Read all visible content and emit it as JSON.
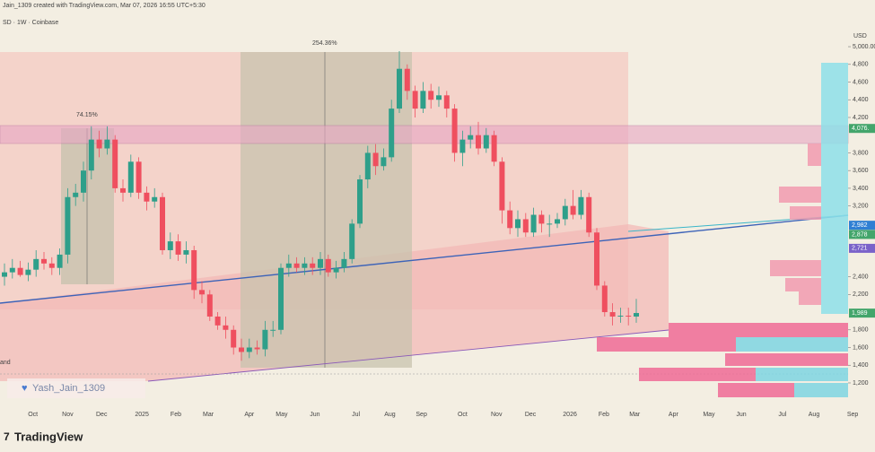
{
  "header": {
    "credit": "Jain_1309 created with TradingView.com, Mar 07, 2026 16:55 UTC+5:30",
    "symbol": "SD · 1W · Coinbase"
  },
  "footer": {
    "brand": "TradingView"
  },
  "watermark": "Yash_Jain_1309",
  "chart_data": {
    "type": "candlestick",
    "currency": "USD",
    "annotations": [
      {
        "text": "74.15%"
      },
      {
        "text": "254.36%"
      },
      {
        "text": "and"
      }
    ],
    "up_color": "#2e9f8a",
    "down_color": "#ef4f5f",
    "ylim": [
      916,
      5345
    ],
    "yticks": [
      {
        "value": 1200,
        "label": "1,200"
      },
      {
        "value": 1400,
        "label": "1,400"
      },
      {
        "value": 1600,
        "label": "1,600"
      },
      {
        "value": 1800,
        "label": "1,800"
      },
      {
        "value": 2200,
        "label": "2,200"
      },
      {
        "value": 2400,
        "label": "2,400"
      },
      {
        "value": 3200,
        "label": "3,200"
      },
      {
        "value": 3400,
        "label": "3,400"
      },
      {
        "value": 3600,
        "label": "3,600"
      },
      {
        "value": 3800,
        "label": "3,800"
      },
      {
        "value": 4200,
        "label": "4,200"
      },
      {
        "value": 4400,
        "label": "4,400"
      },
      {
        "value": 4600,
        "label": "4,600"
      },
      {
        "value": 4800,
        "label": "4,800"
      },
      {
        "value": 5000,
        "label": "5,000.00"
      }
    ],
    "price_labels": [
      {
        "value": 4076,
        "label": "4,076.",
        "color": "#43a56b"
      },
      {
        "value": 2982,
        "label": "2,982",
        "color": "#2f7fd3"
      },
      {
        "value": 2878,
        "label": "2,878",
        "color": "#43a56b"
      },
      {
        "value": 2721,
        "label": "2,721",
        "color": "#7a62c9"
      },
      {
        "value": 1989,
        "label": "1,989",
        "color": "#43a56b"
      }
    ],
    "xticks": [
      {
        "value": 3.6,
        "label": "Oct"
      },
      {
        "value": 8.0,
        "label": "Nov"
      },
      {
        "value": 12.3,
        "label": "Dec"
      },
      {
        "value": 17.4,
        "label": "2025"
      },
      {
        "value": 21.7,
        "label": "Feb"
      },
      {
        "value": 25.8,
        "label": "Mar"
      },
      {
        "value": 31.0,
        "label": "Apr"
      },
      {
        "value": 35.1,
        "label": "May"
      },
      {
        "value": 39.3,
        "label": "Jun"
      },
      {
        "value": 44.5,
        "label": "Jul"
      },
      {
        "value": 48.8,
        "label": "Aug"
      },
      {
        "value": 52.8,
        "label": "Sep"
      },
      {
        "value": 58.0,
        "label": "Oct"
      },
      {
        "value": 62.3,
        "label": "Nov"
      },
      {
        "value": 66.6,
        "label": "Dec"
      },
      {
        "value": 71.6,
        "label": "2026"
      },
      {
        "value": 75.9,
        "label": "Feb"
      },
      {
        "value": 79.8,
        "label": "Mar"
      },
      {
        "value": 84.7,
        "label": "Apr"
      },
      {
        "value": 89.2,
        "label": "May"
      },
      {
        "value": 93.3,
        "label": "Jun"
      },
      {
        "value": 98.5,
        "label": "Jul"
      },
      {
        "value": 102.5,
        "label": "Aug"
      },
      {
        "value": 107.4,
        "label": "Sep"
      }
    ],
    "open": [
      2400,
      2450,
      2500,
      2420,
      2480,
      2600,
      2550,
      2500,
      2650,
      3300,
      3350,
      3600,
      3950,
      3850,
      3950,
      3400,
      3350,
      3700,
      3350,
      3250,
      3300,
      2700,
      2800,
      2650,
      2700,
      2250,
      2200,
      1950,
      1850,
      1800,
      1600,
      1550,
      1600,
      1580,
      1800,
      1800,
      2500,
      2550,
      2500,
      2550,
      2500,
      2600,
      2450,
      2500,
      2600,
      3000,
      3500,
      3800,
      3650,
      3750,
      4300,
      4750,
      4500,
      4300,
      4500,
      4400,
      4450,
      4300,
      3800,
      3950,
      4000,
      3850,
      4000,
      3700,
      3150,
      2950,
      3050,
      2900,
      3100,
      3000,
      3000,
      3050,
      3200,
      3100,
      3300,
      2900,
      2300,
      2000,
      1950,
      1960,
      1950
    ],
    "high": [
      2550,
      2600,
      2580,
      2560,
      2700,
      2680,
      2620,
      2720,
      3400,
      3450,
      3700,
      4100,
      4050,
      4100,
      4000,
      3500,
      3780,
      3750,
      3420,
      3400,
      3350,
      2900,
      2880,
      2800,
      2750,
      2350,
      2250,
      2000,
      1950,
      1850,
      1700,
      1700,
      1680,
      1900,
      1900,
      2550,
      2650,
      2620,
      2620,
      2620,
      2680,
      2650,
      2580,
      2680,
      3050,
      3550,
      3880,
      3900,
      3850,
      4400,
      4950,
      4800,
      4560,
      4600,
      4580,
      4550,
      4500,
      4350,
      4050,
      4100,
      4150,
      4080,
      4050,
      3750,
      3250,
      3150,
      3120,
      3180,
      3150,
      3100,
      3120,
      3280,
      3380,
      3380,
      3350,
      2950,
      2350,
      2100,
      2050,
      2050,
      2150
    ],
    "low": [
      2300,
      2380,
      2400,
      2350,
      2400,
      2480,
      2420,
      2420,
      2550,
      3200,
      3250,
      3500,
      3750,
      3780,
      3350,
      3250,
      3300,
      3280,
      3150,
      3180,
      2650,
      2600,
      2580,
      2550,
      2150,
      2100,
      1900,
      1800,
      1700,
      1520,
      1450,
      1480,
      1520,
      1500,
      1720,
      1750,
      2400,
      2450,
      2420,
      2420,
      2420,
      2400,
      2380,
      2450,
      2550,
      2950,
      3400,
      3550,
      3600,
      3700,
      4250,
      4400,
      4200,
      4250,
      4300,
      4320,
      4200,
      3700,
      3650,
      3850,
      3780,
      3800,
      3650,
      3000,
      2880,
      2850,
      2850,
      2850,
      2900,
      2850,
      2950,
      2980,
      3050,
      3050,
      2850,
      2250,
      1950,
      1850,
      1880,
      1850,
      1880
    ],
    "close": [
      2450,
      2500,
      2420,
      2480,
      2600,
      2550,
      2500,
      2650,
      3300,
      3350,
      3600,
      3950,
      3850,
      3950,
      3400,
      3350,
      3700,
      3350,
      3250,
      3300,
      2700,
      2800,
      2650,
      2700,
      2250,
      2200,
      1950,
      1850,
      1800,
      1600,
      1550,
      1600,
      1580,
      1800,
      1800,
      2500,
      2550,
      2500,
      2550,
      2500,
      2600,
      2450,
      2500,
      2600,
      3000,
      3500,
      3800,
      3650,
      3750,
      4300,
      4750,
      4500,
      4300,
      4500,
      4400,
      4450,
      4300,
      3800,
      3950,
      4000,
      3850,
      4000,
      3700,
      3150,
      2950,
      3050,
      2900,
      3100,
      3000,
      3000,
      3050,
      3200,
      3100,
      3300,
      2900,
      2300,
      2000,
      1950,
      1960,
      1950,
      1990
    ]
  }
}
